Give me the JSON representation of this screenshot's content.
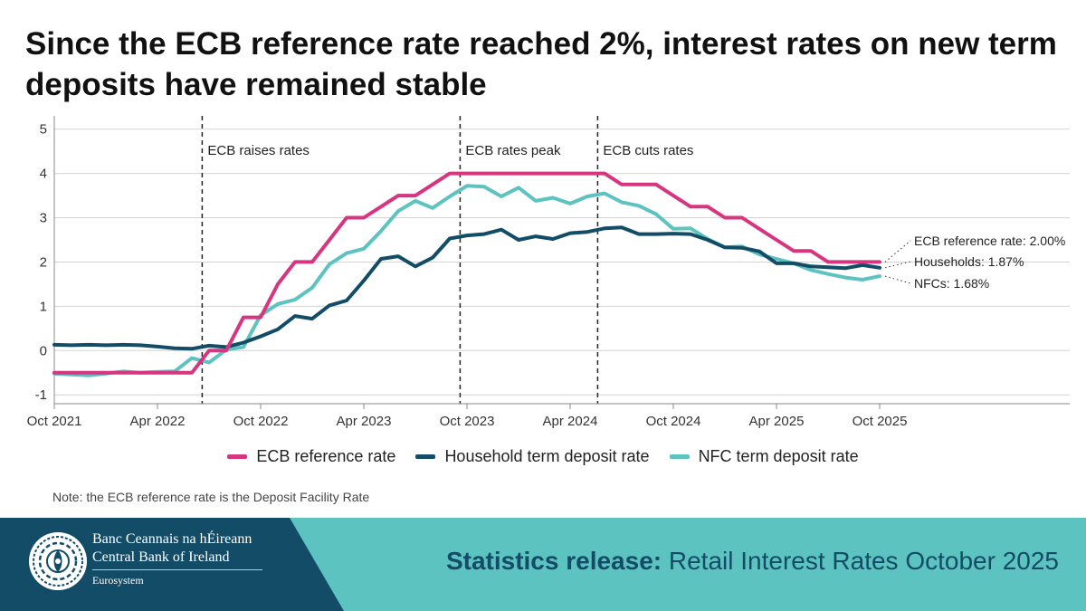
{
  "title": "Since the ECB reference rate reached 2%, interest rates on new term deposits have remained stable",
  "note": "Note: the ECB reference rate is the Deposit Facility Rate",
  "footer": {
    "bank_name_irish": "Banc Ceannais na hÉireann",
    "bank_name_english": "Central Bank of Ireland",
    "eurosystem": "Eurosystem",
    "release_bold": "Statistics release:",
    "release_text": "Retail Interest Rates October 2025"
  },
  "colors": {
    "ecb": "#d6357f",
    "household": "#134c67",
    "nfc": "#5cc3c0",
    "footer_dark": "#134c67",
    "footer_teal": "#5cc3c0"
  },
  "chart_data": {
    "type": "line",
    "title": "Since the ECB reference rate reached 2%, interest rates on new term deposits have remained stable",
    "xlabel": "",
    "ylabel": "",
    "ylim": [
      -1.2,
      5.3
    ],
    "yticks": [
      -1,
      0,
      1,
      2,
      3,
      4,
      5
    ],
    "x_start": "Oct 2021",
    "x_count": 49,
    "xtick_labels": [
      {
        "index": 0,
        "label": "Oct 2021"
      },
      {
        "index": 6,
        "label": "Apr 2022"
      },
      {
        "index": 12,
        "label": "Oct 2022"
      },
      {
        "index": 18,
        "label": "Apr 2023"
      },
      {
        "index": 24,
        "label": "Oct 2023"
      },
      {
        "index": 30,
        "label": "Apr 2024"
      },
      {
        "index": 36,
        "label": "Oct 2024"
      },
      {
        "index": 42,
        "label": "Apr 2025"
      },
      {
        "index": 48,
        "label": "Oct 2025"
      }
    ],
    "series": [
      {
        "name": "ECB reference rate",
        "color": "#d6357f",
        "values": [
          -0.5,
          -0.5,
          -0.5,
          -0.5,
          -0.5,
          -0.5,
          -0.5,
          -0.5,
          -0.5,
          0,
          0,
          0.75,
          0.75,
          1.5,
          2,
          2,
          2.5,
          3,
          3,
          3.25,
          3.5,
          3.5,
          3.75,
          4,
          4,
          4,
          4,
          4,
          4,
          4,
          4,
          4,
          4,
          3.75,
          3.75,
          3.75,
          3.5,
          3.25,
          3.25,
          3,
          3,
          2.75,
          2.5,
          2.25,
          2.25,
          2,
          2,
          2,
          2
        ]
      },
      {
        "name": "Household term deposit rate",
        "color": "#134c67",
        "values": [
          0.13,
          0.12,
          0.13,
          0.12,
          0.13,
          0.12,
          0.09,
          0.05,
          0.04,
          0.11,
          0.08,
          0.18,
          0.32,
          0.48,
          0.78,
          0.72,
          1.02,
          1.13,
          1.58,
          2.07,
          2.13,
          1.9,
          2.1,
          2.53,
          2.6,
          2.63,
          2.73,
          2.5,
          2.58,
          2.52,
          2.65,
          2.68,
          2.76,
          2.78,
          2.63,
          2.63,
          2.64,
          2.63,
          2.5,
          2.33,
          2.32,
          2.24,
          1.97,
          1.97,
          1.9,
          1.88,
          1.86,
          1.93,
          1.87
        ]
      },
      {
        "name": "NFC term deposit rate",
        "color": "#5cc3c0",
        "values": [
          -0.52,
          -0.54,
          -0.56,
          -0.52,
          -0.47,
          -0.5,
          -0.48,
          -0.47,
          -0.17,
          -0.27,
          0.02,
          0.08,
          0.8,
          1.05,
          1.15,
          1.42,
          1.95,
          2.2,
          2.3,
          2.7,
          3.15,
          3.38,
          3.22,
          3.48,
          3.72,
          3.7,
          3.48,
          3.68,
          3.38,
          3.45,
          3.32,
          3.48,
          3.55,
          3.35,
          3.27,
          3.08,
          2.75,
          2.76,
          2.52,
          2.33,
          2.35,
          2.17,
          2.07,
          1.97,
          1.82,
          1.73,
          1.65,
          1.6,
          1.68
        ]
      }
    ],
    "events": [
      {
        "label": "ECB raises rates",
        "index": 8.6
      },
      {
        "label": "ECB rates peak",
        "index": 23.6
      },
      {
        "label": "ECB cuts rates",
        "index": 31.6
      }
    ],
    "end_labels": [
      {
        "series": 0,
        "label": "ECB reference rate: 2.00%"
      },
      {
        "series": 1,
        "label": "Households: 1.87%"
      },
      {
        "series": 2,
        "label": "NFCs: 1.68%"
      }
    ]
  }
}
